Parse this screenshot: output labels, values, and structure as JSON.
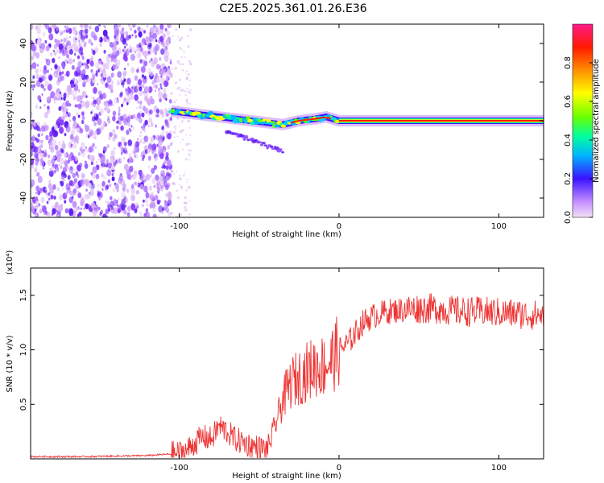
{
  "title": "C2E5.2025.361.01.26.E36",
  "chart_data": [
    {
      "type": "heatmap",
      "name": "spectrogram",
      "xlabel": "Height of straight line (km)",
      "ylabel": "Frequency (Hz)",
      "xlim": [
        -193,
        128
      ],
      "ylim": [
        -50,
        50
      ],
      "xticks": [
        {
          "value": -100,
          "label": "-100"
        },
        {
          "value": 0,
          "label": "0"
        },
        {
          "value": 100,
          "label": "100"
        }
      ],
      "yticks": [
        {
          "value": 40,
          "label": "40"
        },
        {
          "value": 20,
          "label": "20"
        },
        {
          "value": 0,
          "label": "0"
        },
        {
          "value": -20,
          "label": "-20"
        },
        {
          "value": -40,
          "label": "-40"
        }
      ],
      "noise_region_x": [
        -193,
        -105
      ],
      "signal_track": [
        {
          "x": -105,
          "freq": 5
        },
        {
          "x": -95,
          "freq": 4
        },
        {
          "x": -85,
          "freq": 3
        },
        {
          "x": -75,
          "freq": 2
        },
        {
          "x": -65,
          "freq": 1
        },
        {
          "x": -55,
          "freq": 0
        },
        {
          "x": -45,
          "freq": -1
        },
        {
          "x": -35,
          "freq": -2
        },
        {
          "x": -25,
          "freq": 0
        },
        {
          "x": -15,
          "freq": 1
        },
        {
          "x": -8,
          "freq": 2
        },
        {
          "x": 0,
          "freq": 0
        },
        {
          "x": 128,
          "freq": 0
        }
      ],
      "colorbar": {
        "label": "Normalized spectral amplitude",
        "range": [
          0,
          1
        ],
        "ticks": [
          {
            "value": 0.0,
            "label": "0.0"
          },
          {
            "value": 0.2,
            "label": "0.2"
          },
          {
            "value": 0.4,
            "label": "0.4"
          },
          {
            "value": 0.6,
            "label": "0.6"
          },
          {
            "value": 0.8,
            "label": "0.8"
          }
        ],
        "colors": [
          "#f4e0f8",
          "#a94bff",
          "#3a12ff",
          "#00b4ff",
          "#00ffa0",
          "#6aff00",
          "#ffff00",
          "#ff9000",
          "#ff1a00",
          "#ff1a88"
        ]
      }
    },
    {
      "type": "line",
      "name": "snr",
      "xlabel": "Height of straight line (km)",
      "ylabel": "SNR (10 * v/v)",
      "y_scale_label": "(x10⁴)",
      "xlim": [
        -193,
        128
      ],
      "ylim": [
        0,
        1.75
      ],
      "xticks": [
        {
          "value": -100,
          "label": "-100"
        },
        {
          "value": 0,
          "label": "0"
        },
        {
          "value": 100,
          "label": "100"
        }
      ],
      "yticks": [
        {
          "value": 1.5,
          "label": "1.5"
        },
        {
          "value": 1.0,
          "label": "1.0"
        },
        {
          "value": 0.5,
          "label": "0.5"
        }
      ],
      "line_color": "#ee3333",
      "series": [
        {
          "name": "SNR",
          "x": [
            -193,
            -180,
            -160,
            -140,
            -120,
            -110,
            -100,
            -95,
            -90,
            -85,
            -80,
            -75,
            -70,
            -65,
            -60,
            -55,
            -50,
            -45,
            -40,
            -35,
            -30,
            -25,
            -20,
            -15,
            -10,
            -5,
            0,
            5,
            10,
            15,
            20,
            25,
            30,
            40,
            50,
            60,
            70,
            80,
            90,
            100,
            110,
            120,
            128
          ],
          "y": [
            0.02,
            0.02,
            0.02,
            0.025,
            0.03,
            0.04,
            0.05,
            0.08,
            0.15,
            0.2,
            0.18,
            0.3,
            0.25,
            0.18,
            0.15,
            0.12,
            0.1,
            0.08,
            0.3,
            0.55,
            0.7,
            0.75,
            0.8,
            0.85,
            0.85,
            0.9,
            1.0,
            1.05,
            1.15,
            1.25,
            1.3,
            1.33,
            1.35,
            1.37,
            1.38,
            1.38,
            1.36,
            1.35,
            1.35,
            1.34,
            1.33,
            1.32,
            1.32
          ]
        }
      ]
    }
  ]
}
